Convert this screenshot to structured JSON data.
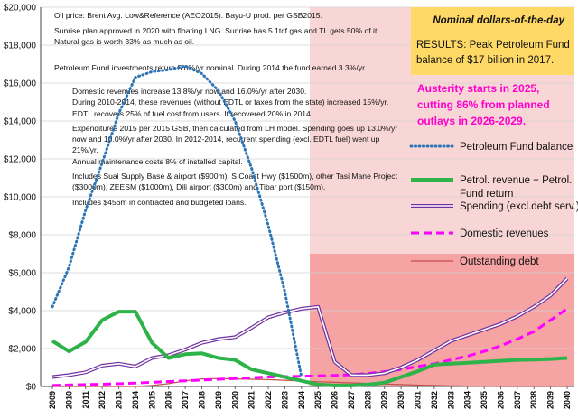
{
  "assumptions": [
    "Oil price: Brent Avg. Low&Reference (AEO2015).   Bayu-U prod. per GSB2015.",
    "Sunrise plan approved in 2020 with floating LNG. Sunrise has 5.1tcf gas and TL gets 50% of it.",
    "Natural gas is worth 33% as much as oil.",
    "Petroleum Fund investments return 5.0%/yr nominal.    During 2014 the fund earned 3.3%/yr.",
    "Domestic revenues increase 13.8%/yr now and 16.0%/yr after 2030.",
    "During 2010-2014, these revenues (without EDTL or taxes from the state) increased 15%/yr.",
    "EDTL recovers 25% of fuel cost from users. It recovered 20% in 2014.",
    "Expenditures 2015 per 2015 GSB, then calculated from LH model. Spending goes up 13.0%/yr",
    "now and 10.0%/yr after 2030.  In 2012-2014, recurrent spending (excl. EDTL fuel) went up",
    "21%/yr.",
    "Annual maintenance costs 8% of installed capital.",
    "Includes Suai Supply Base & airport ($900m), S.Coast Hwy ($1500m), other Tasi Mane Project",
    "($3000m), ZEESM ($1000m), Dili airport ($300m) and Tibar port ($150m).",
    "Includes $456m in contracted and budgeted loans."
  ],
  "badge": "Nominal dollars-of-the-day",
  "results": [
    "RESULTS: Peak Petroleum Fund",
    "balance of $17 billion in 2017."
  ],
  "austerity": [
    "Austerity starts in 2025,",
    "cutting 86% from planned",
    "outlays in 2026-2029."
  ],
  "colors": {
    "fund": "#2e75b6",
    "revenue": "#2db34a",
    "spending": "#7030a0",
    "domestic": "#ff00ff",
    "debt": "#c0504d",
    "pink_light": "#f9d6d6",
    "pink_dark": "#f5a3a3",
    "badge_bg": "#ffd966"
  },
  "chart_data": {
    "type": "line",
    "title": "",
    "xlabel": "",
    "ylabel": "",
    "ylim": [
      0,
      20000
    ],
    "yticks": [
      "$0",
      "$2,000",
      "$4,000",
      "$6,000",
      "$8,000",
      "$10,000",
      "$12,000",
      "$14,000",
      "$16,000",
      "$18,000",
      "$20,000"
    ],
    "x": [
      "2009",
      "2010",
      "2011",
      "2012",
      "2013",
      "2014",
      "2015",
      "2016",
      "2017",
      "2018",
      "2019",
      "2020",
      "2021",
      "2022",
      "2023",
      "2024",
      "2025",
      "2026",
      "2027",
      "2028",
      "2029",
      "2030",
      "2031",
      "2032",
      "2033",
      "2034",
      "2035",
      "2036",
      "2037",
      "2038",
      "2039",
      "2040"
    ],
    "legend_position": "right",
    "series": [
      {
        "name": "Petroleum Fund balance",
        "key": "fund",
        "style": "dotted",
        "values": [
          4200,
          6300,
          9300,
          11800,
          14400,
          16300,
          16600,
          16700,
          16900,
          16500,
          15600,
          14000,
          11500,
          8500,
          5000,
          500,
          null,
          null,
          null,
          null,
          null,
          null,
          null,
          null,
          null,
          null,
          null,
          null,
          null,
          null,
          null,
          null
        ]
      },
      {
        "name": "Petrol. revenue + Petrol. Fund return",
        "key": "revenue",
        "style": "solid-thick",
        "values": [
          2400,
          1850,
          2350,
          3500,
          3950,
          3950,
          2300,
          1500,
          1700,
          1750,
          1500,
          1400,
          900,
          700,
          500,
          300,
          100,
          50,
          50,
          100,
          200,
          500,
          800,
          1150,
          1200,
          1250,
          1300,
          1350,
          1400,
          1420,
          1450,
          1500
        ]
      },
      {
        "name": "Spending (excl.debt serv.)",
        "key": "spending",
        "style": "double",
        "values": [
          500,
          600,
          750,
          1100,
          1200,
          1050,
          1500,
          1650,
          1950,
          2300,
          2500,
          2600,
          3100,
          3650,
          3900,
          4100,
          4200,
          1300,
          600,
          600,
          700,
          1000,
          1400,
          1900,
          2400,
          2700,
          3000,
          3300,
          3700,
          4200,
          4800,
          5700
        ]
      },
      {
        "name": "Domestic revenues",
        "key": "domestic",
        "style": "dashed",
        "values": [
          50,
          80,
          100,
          120,
          150,
          180,
          220,
          260,
          300,
          340,
          380,
          420,
          460,
          500,
          520,
          540,
          560,
          580,
          620,
          680,
          780,
          900,
          1050,
          1200,
          1400,
          1600,
          1850,
          2150,
          2500,
          2900,
          3500,
          4100
        ]
      },
      {
        "name": "Outstanding debt",
        "key": "debt",
        "style": "solid-thin",
        "values": [
          0,
          0,
          0,
          0,
          0,
          0,
          50,
          150,
          300,
          400,
          420,
          400,
          380,
          360,
          330,
          290,
          250,
          220,
          190,
          160,
          130,
          100,
          70,
          50,
          30,
          20,
          10,
          0,
          0,
          0,
          0,
          0
        ]
      }
    ]
  }
}
